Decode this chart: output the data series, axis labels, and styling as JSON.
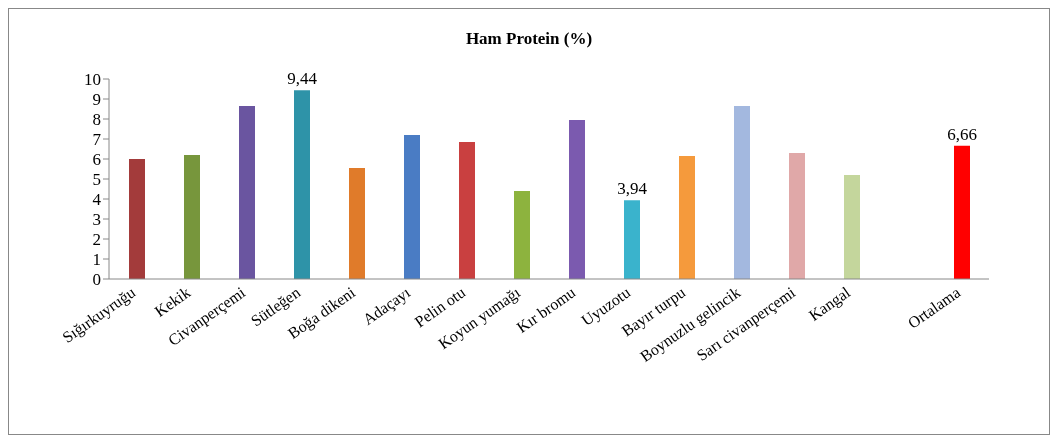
{
  "chart_data": {
    "type": "bar",
    "title": "Ham Protein (%)",
    "categories": [
      "Sığırkuyruğu",
      "Kekik",
      "Civanperçemi",
      "Sütleğen",
      "Boğa dikeni",
      "Adaçayı",
      "Pelin otu",
      "Koyun yumağı",
      "Kır bromu",
      "Uyuzotu",
      "Bayır turpu",
      "Boynuzlu gelincik",
      "Sarı civanperçemi",
      "Kangal",
      null,
      "Ortalama"
    ],
    "values": [
      6.0,
      6.2,
      8.65,
      9.44,
      5.55,
      7.2,
      6.85,
      4.4,
      7.95,
      3.94,
      6.15,
      8.65,
      6.3,
      5.2,
      null,
      6.66
    ],
    "value_labels": [
      null,
      null,
      null,
      "9,44",
      null,
      null,
      null,
      null,
      null,
      "3,94",
      null,
      null,
      null,
      null,
      null,
      "6,66"
    ],
    "colors": [
      "#a33b3b",
      "#77963c",
      "#6a55a0",
      "#2e93a8",
      "#e07b2a",
      "#4a7cc4",
      "#c94040",
      "#8db33e",
      "#7b5aaf",
      "#3ab3cc",
      "#f59a3c",
      "#a3b8df",
      "#e0a8a8",
      "#c4d69c",
      null,
      "#ff0000"
    ],
    "ylim": [
      0,
      10
    ],
    "yticks": [
      0,
      1,
      2,
      3,
      4,
      5,
      6,
      7,
      8,
      9,
      10
    ]
  }
}
